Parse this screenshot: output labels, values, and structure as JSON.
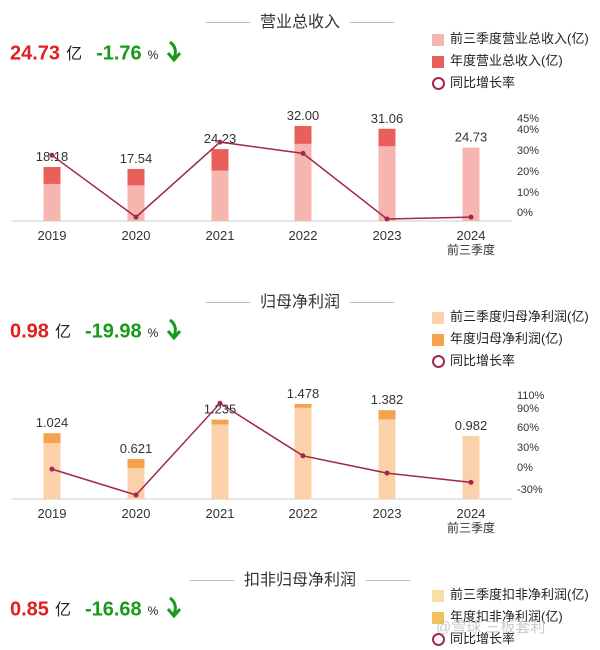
{
  "colors": {
    "line": "#a0284a",
    "revenue_q3": "#f6b5ae",
    "revenue_annual": "#e9605a",
    "profit_q3": "#fad1a8",
    "profit_annual": "#f4a24e",
    "deducted_q3": "#f8dfa6",
    "deducted_annual": "#f2c15e"
  },
  "panels": [
    {
      "title": "营业总收入",
      "headline": {
        "value": "24.73",
        "unit": "亿",
        "pct": "-1.76",
        "pct_symbol": "%"
      },
      "legend": [
        "前三季度营业总收入(亿)",
        "年度营业总收入(亿)",
        "同比增长率"
      ],
      "x_labels": [
        "2019",
        "2020",
        "2021",
        "2022",
        "2023",
        "2024"
      ],
      "x_sub_label": "前三季度",
      "data_labels": [
        "18.18",
        "17.54",
        "24.23",
        "32.00",
        "31.06",
        "24.73"
      ]
    },
    {
      "title": "归母净利润",
      "headline": {
        "value": "0.98",
        "unit": "亿",
        "pct": "-19.98",
        "pct_symbol": "%"
      },
      "legend": [
        "前三季度归母净利润(亿)",
        "年度归母净利润(亿)",
        "同比增长率"
      ],
      "x_labels": [
        "2019",
        "2020",
        "2021",
        "2022",
        "2023",
        "2024"
      ],
      "x_sub_label": "前三季度",
      "data_labels": [
        "1.024",
        "0.621",
        "1.235",
        "1.478",
        "1.382",
        "0.982"
      ]
    },
    {
      "title": "扣非归母净利润",
      "headline": {
        "value": "0.85",
        "unit": "亿",
        "pct": "-16.68",
        "pct_symbol": "%"
      },
      "legend": [
        "前三季度扣非净利润(亿)",
        "年度扣非净利润(亿)",
        "同比增长率"
      ]
    }
  ],
  "watermark": "@雪球 三板套利",
  "chart_data": [
    {
      "type": "bar",
      "categories": [
        "2019",
        "2020",
        "2021",
        "2022",
        "2023",
        "2024 前三季度"
      ],
      "series": [
        {
          "name": "年度营业总收入(亿)",
          "values": [
            18.18,
            17.54,
            24.23,
            32.0,
            31.06,
            null
          ]
        },
        {
          "name": "前三季度营业总收入(亿)",
          "values": [
            12.5,
            12.0,
            17.0,
            26.0,
            25.2,
            24.73
          ]
        },
        {
          "name": "同比增长率",
          "values": [
            31,
            -2,
            38,
            32,
            -3,
            -2
          ]
        }
      ],
      "y2_ticks": [
        "45%",
        "40%",
        "30%",
        "20%",
        "10%",
        "0%"
      ],
      "y_range": [
        0,
        32
      ],
      "y2_range": [
        -3,
        45
      ]
    },
    {
      "type": "bar",
      "categories": [
        "2019",
        "2020",
        "2021",
        "2022",
        "2023",
        "2024 前三季度"
      ],
      "series": [
        {
          "name": "年度归母净利润(亿)",
          "values": [
            1.024,
            0.621,
            1.235,
            1.478,
            1.382,
            null
          ]
        },
        {
          "name": "前三季度归母净利润(亿)",
          "values": [
            0.87,
            0.48,
            1.16,
            1.42,
            1.24,
            0.982
          ]
        },
        {
          "name": "同比增长率",
          "values": [
            0,
            -39,
            99,
            20,
            -6,
            -20
          ]
        }
      ],
      "y2_ticks": [
        "110%",
        "90%",
        "60%",
        "30%",
        "0%",
        "-30%"
      ],
      "y_range": [
        0,
        1.478
      ],
      "y2_range": [
        -39,
        110
      ]
    }
  ]
}
